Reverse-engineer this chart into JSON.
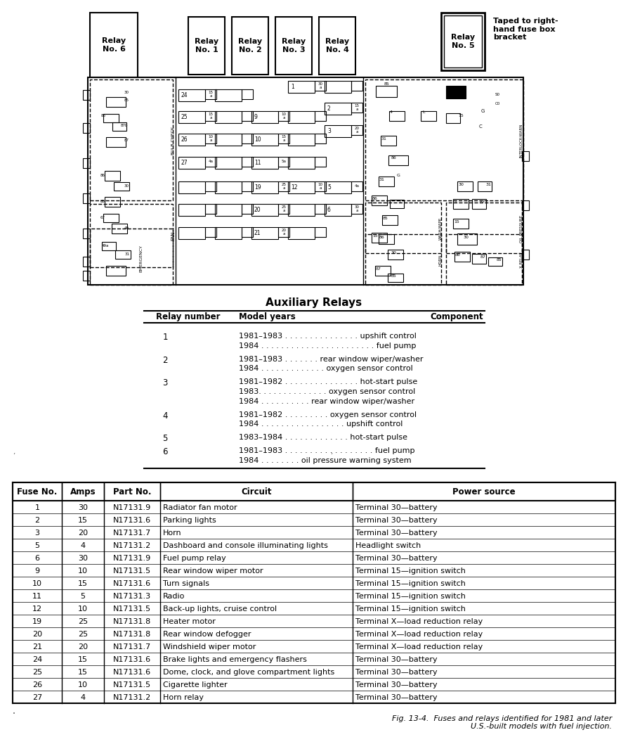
{
  "relay_labels": [
    "Relay\nNo. 6",
    "Relay\nNo. 1",
    "Relay\nNo. 2",
    "Relay\nNo. 3",
    "Relay\nNo. 4",
    "Relay\nNo. 5"
  ],
  "relay_note": "Taped to right-\nhand fuse box\nbracket",
  "aux_title": "Auxiliary Relays",
  "aux_headers": [
    "Relay number",
    "Model years",
    "Component"
  ],
  "relay_data": [
    {
      "num": "1",
      "lines": [
        "1981–1983 . . . . . . . . . . . . . . . upshift control",
        "1984 . . . . . . . . . . . . . . . . . . . . . . . fuel pump"
      ]
    },
    {
      "num": "2",
      "lines": [
        "1981–1983 . . . . . . . rear window wiper/washer",
        "1984 . . . . . . . . . . . . . oxygen sensor control"
      ]
    },
    {
      "num": "3",
      "lines": [
        "1981–1982 . . . . . . . . . . . . . . . hot-start pulse",
        "1983. . . . . . . . . . . . . . oxygen sensor control",
        "1984 . . . . . . . . . . rear window wiper/washer"
      ]
    },
    {
      "num": "4",
      "lines": [
        "1981–1982 . . . . . . . . . oxygen sensor control",
        "1984 . . . . . . . . . . . . . . . . . upshift control"
      ]
    },
    {
      "num": "5",
      "lines": [
        "1983–1984 . . . . . . . . . . . . . hot-start pulse"
      ]
    },
    {
      "num": "6",
      "lines": [
        "1981–1983 . . . . . . . . . . . . . . . . . . fuel pump",
        "1984 . . . . . . . . oil pressure warning system"
      ]
    }
  ],
  "fuse_headers": [
    "Fuse No.",
    "Amps",
    "Part No.",
    "Circuit",
    "Power source"
  ],
  "fuse_rows": [
    [
      "1",
      "30",
      "N17131.9",
      "Radiator fan motor",
      "Terminal 30—battery"
    ],
    [
      "2",
      "15",
      "N17131.6",
      "Parking lights",
      "Terminal 30—battery"
    ],
    [
      "3",
      "20",
      "N17131.7",
      "Horn",
      "Terminal 30—battery"
    ],
    [
      "5",
      "4",
      "N17131.2",
      "Dashboard and console illuminating lights",
      "Headlight switch"
    ],
    [
      "6",
      "30",
      "N17131.9",
      "Fuel pump relay",
      "Terminal 30—battery"
    ],
    [
      "9",
      "10",
      "N17131.5",
      "Rear window wiper motor",
      "Terminal 15—ignition switch"
    ],
    [
      "10",
      "15",
      "N17131.6",
      "Turn signals",
      "Terminal 15—ignition switch"
    ],
    [
      "11",
      "5",
      "N17131.3",
      "Radio",
      "Terminal 15—ignition switch"
    ],
    [
      "12",
      "10",
      "N17131.5",
      "Back-up lights, cruise control",
      "Terminal 15—ignition switch"
    ],
    [
      "19",
      "25",
      "N17131.8",
      "Heater motor",
      "Terminal X—load reduction relay"
    ],
    [
      "20",
      "25",
      "N17131.8",
      "Rear window defogger",
      "Terminal X—load reduction relay"
    ],
    [
      "21",
      "20",
      "N17131.7",
      "Windshield wiper motor",
      "Terminal X—load reduction relay"
    ],
    [
      "24",
      "15",
      "N17131.6",
      "Brake lights and emergency flashers",
      "Terminal 30—battery"
    ],
    [
      "25",
      "15",
      "N17131.6",
      "Dome, clock, and glove compartment lights",
      "Terminal 30—battery"
    ],
    [
      "26",
      "10",
      "N17131.5",
      "Cigarette lighter",
      "Terminal 30—battery"
    ],
    [
      "27",
      "4",
      "N17131.2",
      "Horn relay",
      "Terminal 30—battery"
    ]
  ],
  "caption": "Fig. 13-4.  Fuses and relays identified for 1981 and later\nU.S.-built models with fuel injection.",
  "bg_color": "#ffffff"
}
